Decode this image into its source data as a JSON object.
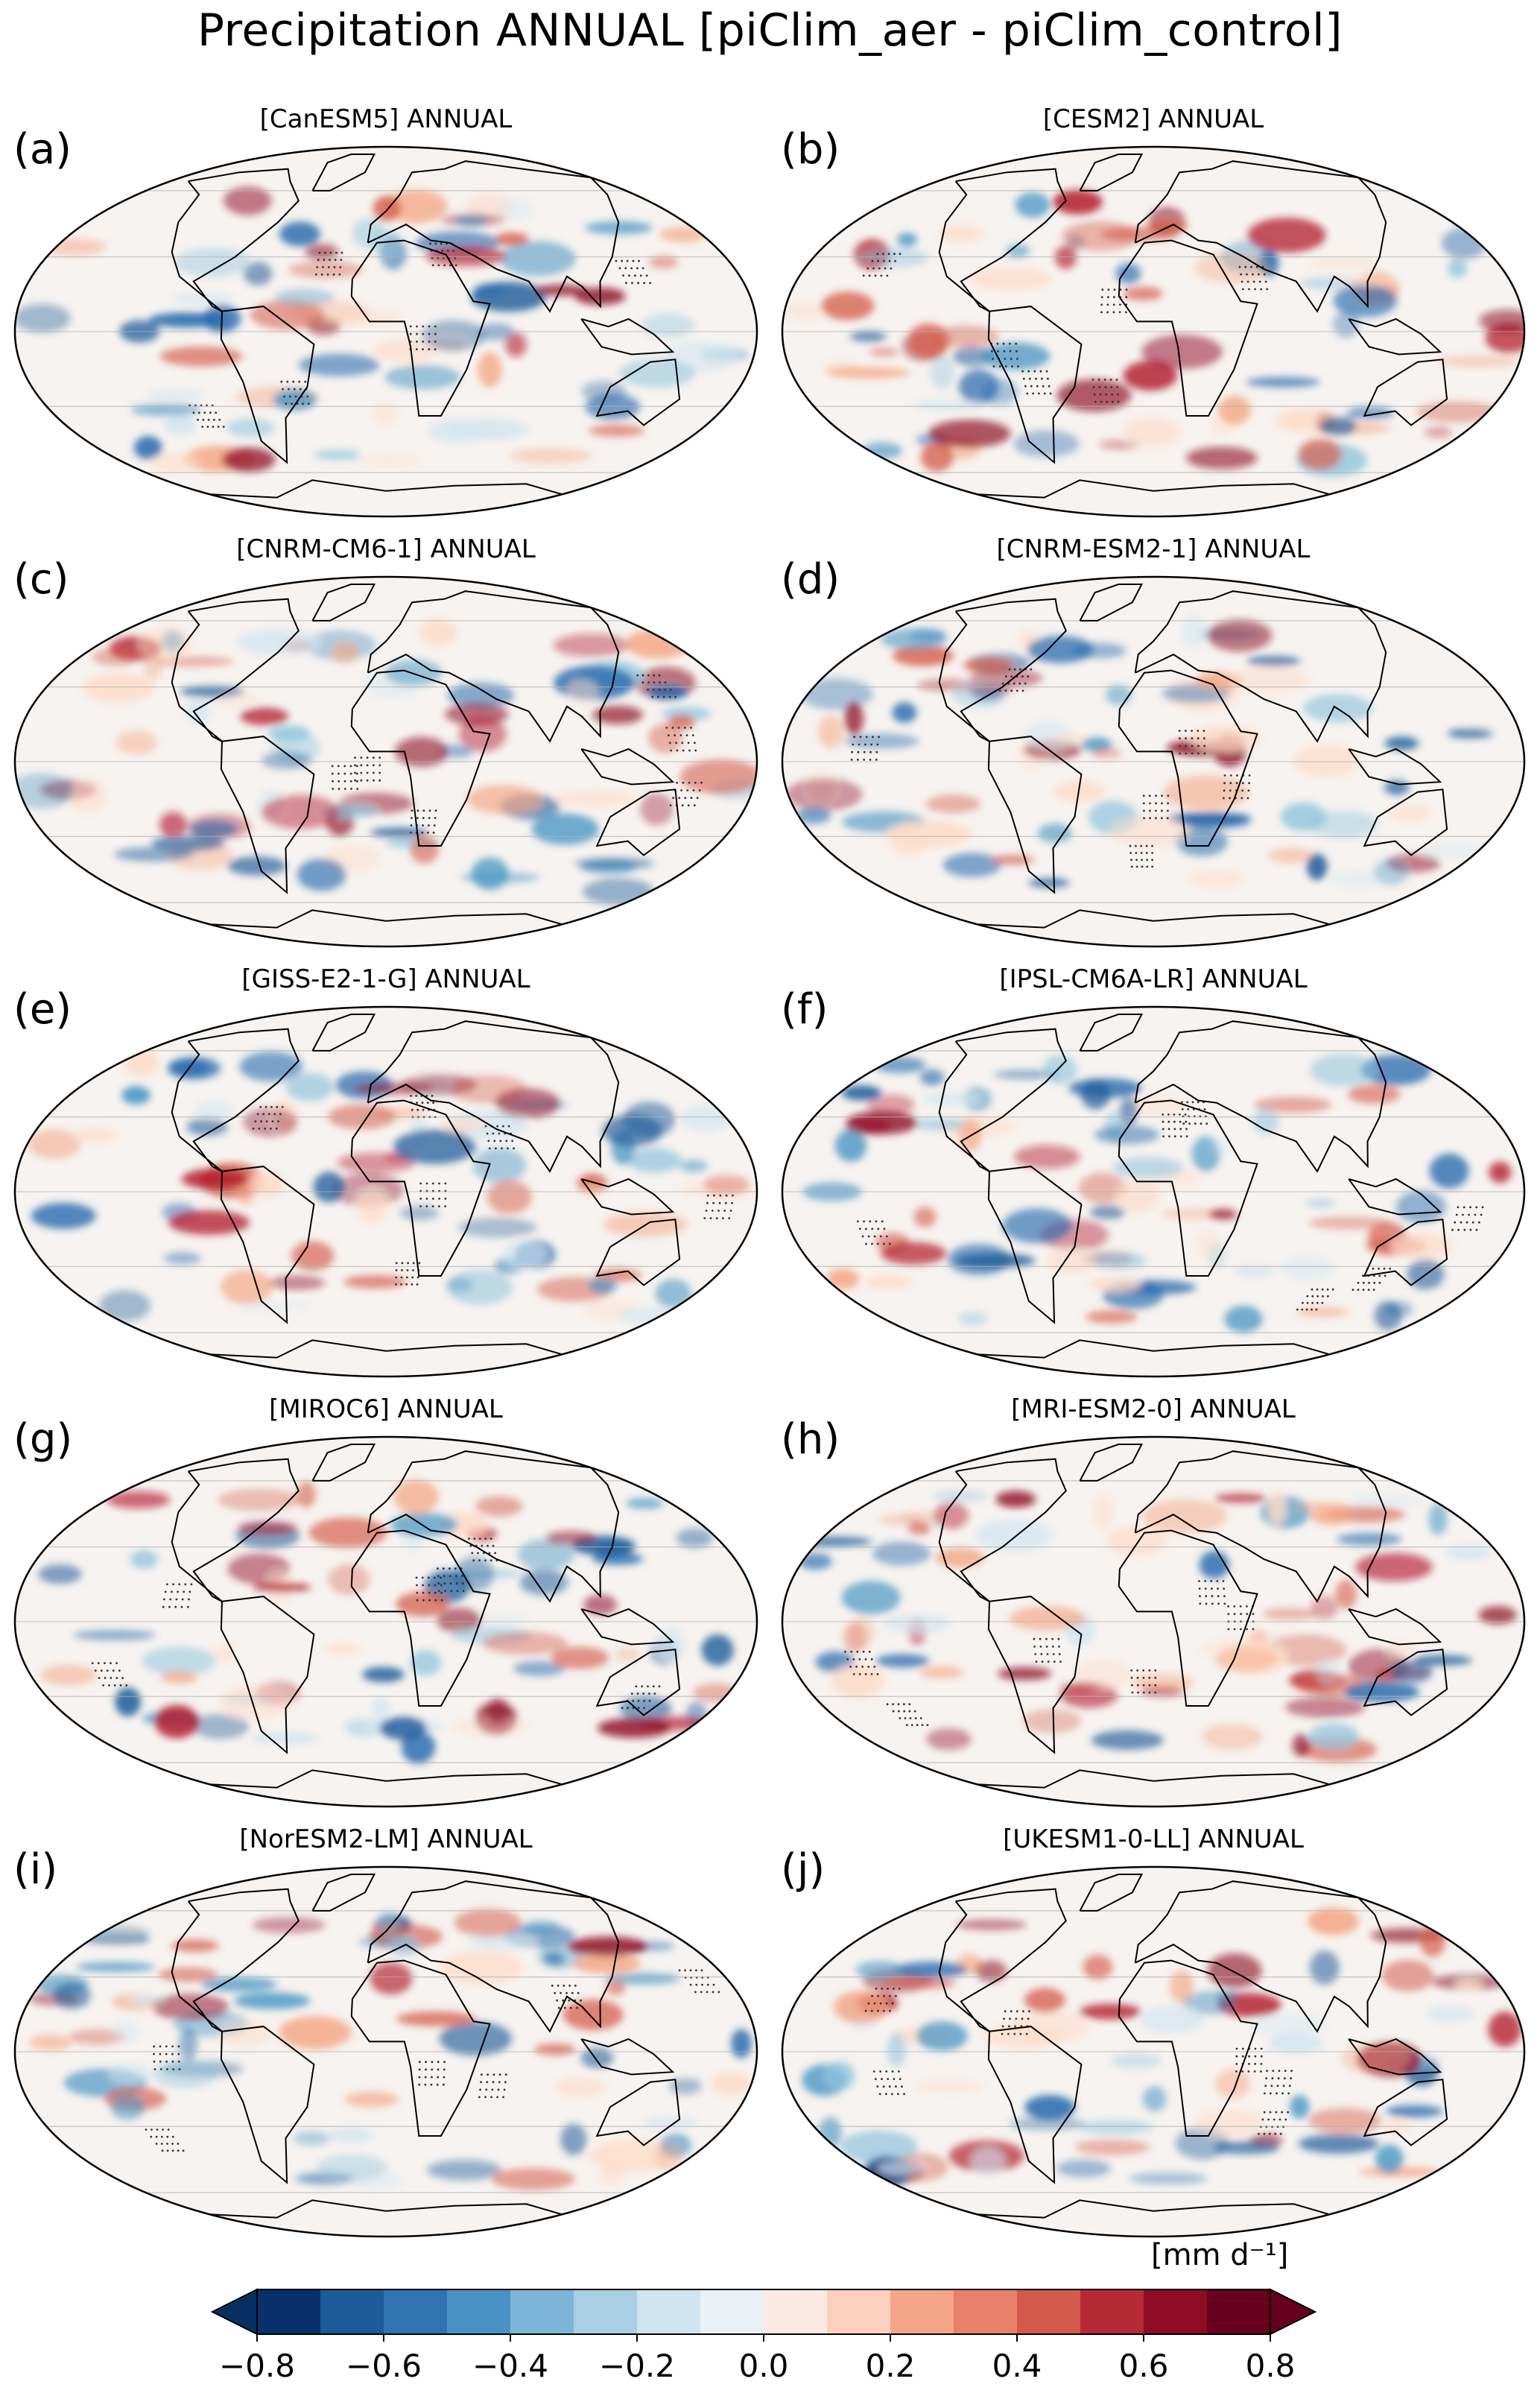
{
  "figure": {
    "title": "Precipitation ANNUAL [piClim_aer - piClim_control]"
  },
  "panels": [
    {
      "letter": "(a)",
      "title": "[CanESM5] ANNUAL"
    },
    {
      "letter": "(b)",
      "title": "[CESM2] ANNUAL"
    },
    {
      "letter": "(c)",
      "title": "[CNRM-CM6-1] ANNUAL"
    },
    {
      "letter": "(d)",
      "title": "[CNRM-ESM2-1] ANNUAL"
    },
    {
      "letter": "(e)",
      "title": "[GISS-E2-1-G] ANNUAL"
    },
    {
      "letter": "(f)",
      "title": "[IPSL-CM6A-LR] ANNUAL"
    },
    {
      "letter": "(g)",
      "title": "[MIROC6] ANNUAL"
    },
    {
      "letter": "(h)",
      "title": "[MRI-ESM2-0] ANNUAL"
    },
    {
      "letter": "(i)",
      "title": "[NorESM2-LM] ANNUAL"
    },
    {
      "letter": "(j)",
      "title": "[UKESM1-0-LL] ANNUAL"
    }
  ],
  "colorbar": {
    "units": "[mm d⁻¹]",
    "levels": [
      -0.8,
      -0.7,
      -0.6,
      -0.5,
      -0.4,
      -0.3,
      -0.2,
      -0.1,
      0.0,
      0.1,
      0.2,
      0.3,
      0.4,
      0.5,
      0.6,
      0.7,
      0.8
    ],
    "tick_labels": [
      "−0.8",
      "−0.6",
      "−0.4",
      "−0.2",
      "0.0",
      "0.2",
      "0.4",
      "0.6",
      "0.8"
    ],
    "colors": [
      "#08306b",
      "#1c5a99",
      "#2f73b2",
      "#4a92c5",
      "#7db5d8",
      "#a9cfe5",
      "#d1e5f0",
      "#e9f1f6",
      "#fbeae3",
      "#fbd0bf",
      "#f4a587",
      "#e8806a",
      "#d25a4c",
      "#b62a35",
      "#8e0c25",
      "#67001f"
    ],
    "extend_low_color": "#053061",
    "extend_high_color": "#67001f"
  }
}
